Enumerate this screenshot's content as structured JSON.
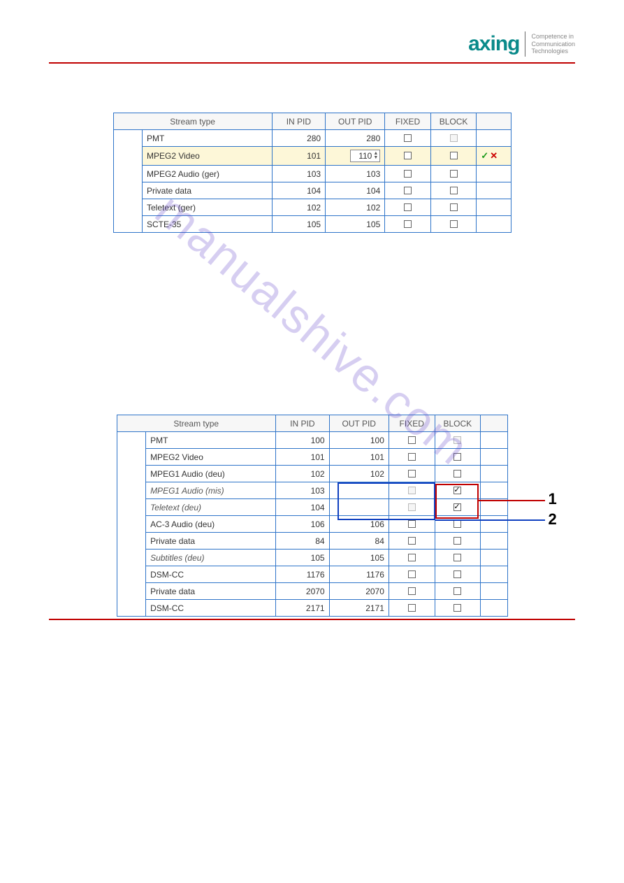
{
  "brand": {
    "logo_text": "axing",
    "tagline_l1": "Competence in",
    "tagline_l2": "Communication",
    "tagline_l3": "Technologies"
  },
  "watermark": "manualshive.com",
  "colors": {
    "border": "#2e74c9",
    "header_bg": "#f7f7f7",
    "highlight_row": "#fdf7d8",
    "rule": "#c00000",
    "logo": "#0a8a8a",
    "callout_red": "#c00000",
    "callout_blue": "#1040c0"
  },
  "table_headers": {
    "stream_type": "Stream type",
    "in_pid": "IN PID",
    "out_pid": "OUT PID",
    "fixed": "FIXED",
    "block": "BLOCK"
  },
  "table1": {
    "rows": [
      {
        "type": "PMT",
        "in": "280",
        "out": "280",
        "fixed": false,
        "block": false,
        "block_disabled": true,
        "highlight": false,
        "italic": false,
        "editable_out": false,
        "actions": false
      },
      {
        "type": "MPEG2 Video",
        "in": "101",
        "out": "110",
        "fixed": false,
        "block": false,
        "block_disabled": false,
        "highlight": true,
        "italic": false,
        "editable_out": true,
        "actions": true
      },
      {
        "type": "MPEG2 Audio (ger)",
        "in": "103",
        "out": "103",
        "fixed": false,
        "block": false,
        "block_disabled": false,
        "highlight": false,
        "italic": false,
        "editable_out": false,
        "actions": false
      },
      {
        "type": "Private data",
        "in": "104",
        "out": "104",
        "fixed": false,
        "block": false,
        "block_disabled": false,
        "highlight": false,
        "italic": false,
        "editable_out": false,
        "actions": false
      },
      {
        "type": "Teletext (ger)",
        "in": "102",
        "out": "102",
        "fixed": false,
        "block": false,
        "block_disabled": false,
        "highlight": false,
        "italic": false,
        "editable_out": false,
        "actions": false
      },
      {
        "type": "SCTE-35",
        "in": "105",
        "out": "105",
        "fixed": false,
        "block": false,
        "block_disabled": false,
        "highlight": false,
        "italic": false,
        "editable_out": false,
        "actions": false
      }
    ]
  },
  "table2": {
    "callouts": [
      {
        "num": "1",
        "color": "#c00000"
      },
      {
        "num": "2",
        "color": "#1040c0"
      }
    ],
    "rows": [
      {
        "type": "PMT",
        "in": "100",
        "out": "100",
        "fixed": false,
        "block": false,
        "block_disabled": true,
        "fixed_disabled": false,
        "italic": false
      },
      {
        "type": "MPEG2 Video",
        "in": "101",
        "out": "101",
        "fixed": false,
        "block": false,
        "block_disabled": false,
        "fixed_disabled": false,
        "italic": false
      },
      {
        "type": "MPEG1 Audio (deu)",
        "in": "102",
        "out": "102",
        "fixed": false,
        "block": false,
        "block_disabled": false,
        "fixed_disabled": false,
        "italic": false
      },
      {
        "type": "MPEG1 Audio (mis)",
        "in": "103",
        "out": "",
        "fixed": false,
        "block": true,
        "block_disabled": false,
        "fixed_disabled": true,
        "italic": true
      },
      {
        "type": "Teletext (deu)",
        "in": "104",
        "out": "",
        "fixed": false,
        "block": true,
        "block_disabled": false,
        "fixed_disabled": true,
        "italic": true
      },
      {
        "type": "AC-3 Audio (deu)",
        "in": "106",
        "out": "106",
        "fixed": false,
        "block": false,
        "block_disabled": false,
        "fixed_disabled": false,
        "italic": false
      },
      {
        "type": "Private data",
        "in": "84",
        "out": "84",
        "fixed": false,
        "block": false,
        "block_disabled": false,
        "fixed_disabled": false,
        "italic": false
      },
      {
        "type": "Subtitles (deu)",
        "in": "105",
        "out": "105",
        "fixed": false,
        "block": false,
        "block_disabled": false,
        "fixed_disabled": false,
        "italic": true
      },
      {
        "type": "DSM-CC",
        "in": "1176",
        "out": "1176",
        "fixed": false,
        "block": false,
        "block_disabled": false,
        "fixed_disabled": false,
        "italic": false
      },
      {
        "type": "Private data",
        "in": "2070",
        "out": "2070",
        "fixed": false,
        "block": false,
        "block_disabled": false,
        "fixed_disabled": false,
        "italic": false
      },
      {
        "type": "DSM-CC",
        "in": "2171",
        "out": "2171",
        "fixed": false,
        "block": false,
        "block_disabled": false,
        "fixed_disabled": false,
        "italic": false
      }
    ]
  }
}
